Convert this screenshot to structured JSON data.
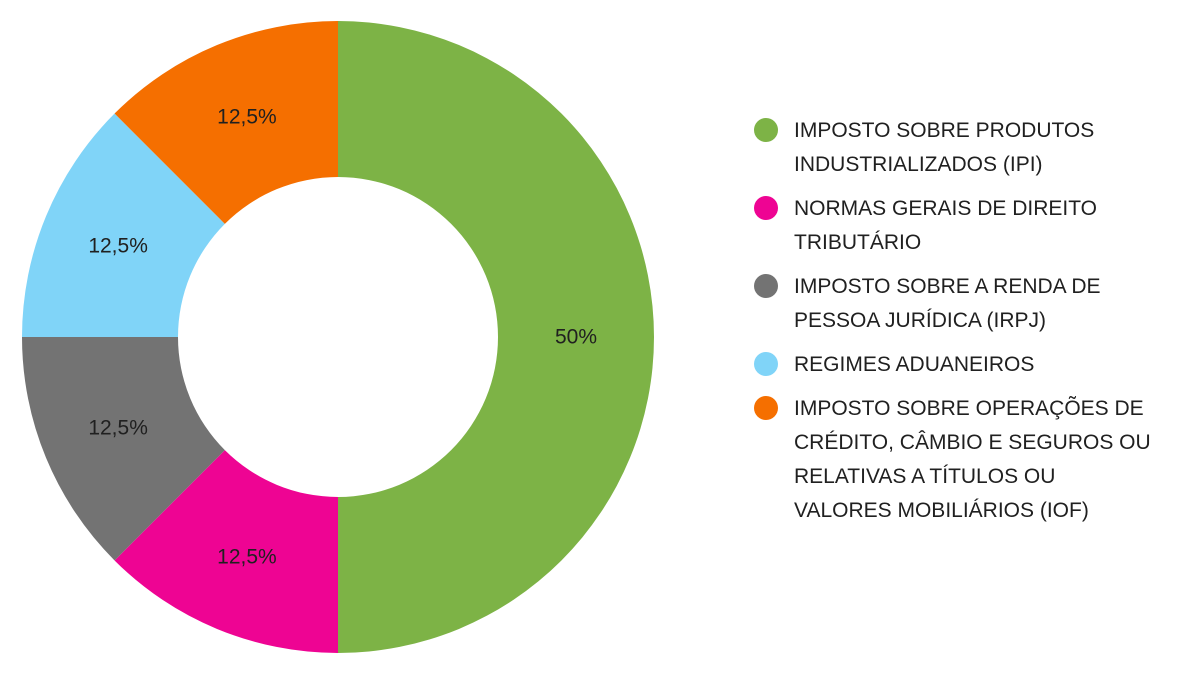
{
  "chart_data": {
    "type": "pie",
    "title": "",
    "legend_position": "right",
    "slices": [
      {
        "label": "IMPOSTO SOBRE PRODUTOS INDUSTRIALIZADOS (IPI)",
        "value": 50,
        "display": "50%",
        "color": "#7db346"
      },
      {
        "label": "NORMAS GERAIS DE DIREITO TRIBUTÁRIO",
        "value": 12.5,
        "display": "12,5%",
        "color": "#ee0493"
      },
      {
        "label": "IMPOSTO SOBRE A RENDA DE PESSOA JURÍDICA (IRPJ)",
        "value": 12.5,
        "display": "12,5%",
        "color": "#737373"
      },
      {
        "label": "REGIMES ADUANEIROS",
        "value": 12.5,
        "display": "12,5%",
        "color": "#80d4f8"
      },
      {
        "label": "IMPOSTO SOBRE OPERAÇÕES DE CRÉDITO, CÂMBIO E SEGUROS OU RELATIVAS A TÍTULOS OU VALORES MOBILIÁRIOS (IOF)",
        "value": 12.5,
        "display": "12,5%",
        "color": "#f56f00"
      }
    ]
  }
}
